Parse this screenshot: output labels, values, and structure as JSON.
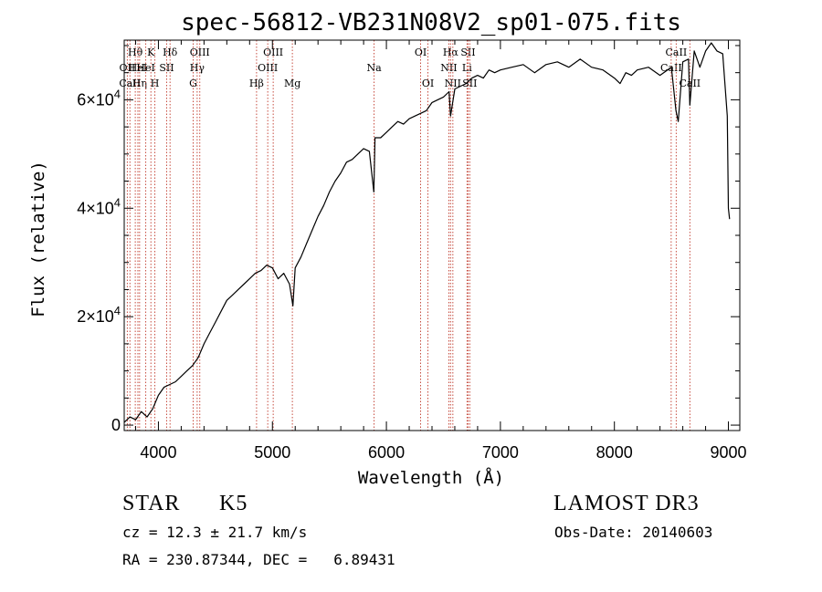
{
  "chart_data": {
    "type": "line",
    "title": "spec-56812-VB231N08V2_sp01-075.fits",
    "xlabel": "Wavelength (Å)",
    "ylabel": "Flux (relative)",
    "xlim": [
      3700,
      9100
    ],
    "ylim": [
      -1000,
      71000
    ],
    "x_ticks": [
      {
        "value": 4000,
        "label": "4000"
      },
      {
        "value": 5000,
        "label": "5000"
      },
      {
        "value": 6000,
        "label": "6000"
      },
      {
        "value": 7000,
        "label": "7000"
      },
      {
        "value": 8000,
        "label": "8000"
      },
      {
        "value": 9000,
        "label": "9000"
      }
    ],
    "y_ticks": [
      {
        "value": 0,
        "mant": "0",
        "exp": ""
      },
      {
        "value": 20000,
        "mant": "2×10",
        "exp": "4"
      },
      {
        "value": 40000,
        "mant": "4×10",
        "exp": "4"
      },
      {
        "value": 60000,
        "mant": "6×10",
        "exp": "4"
      }
    ],
    "series": [
      {
        "name": "flux",
        "x": [
          3700,
          3750,
          3800,
          3850,
          3900,
          3950,
          4000,
          4050,
          4100,
          4150,
          4200,
          4250,
          4300,
          4350,
          4400,
          4450,
          4500,
          4550,
          4600,
          4650,
          4700,
          4750,
          4800,
          4850,
          4900,
          4950,
          5000,
          5050,
          5100,
          5150,
          5180,
          5200,
          5250,
          5300,
          5350,
          5400,
          5450,
          5500,
          5550,
          5600,
          5650,
          5700,
          5750,
          5800,
          5850,
          5890,
          5900,
          5950,
          6000,
          6050,
          6100,
          6150,
          6200,
          6250,
          6300,
          6350,
          6400,
          6450,
          6500,
          6550,
          6563,
          6600,
          6650,
          6700,
          6750,
          6800,
          6850,
          6900,
          6950,
          7000,
          7100,
          7200,
          7300,
          7400,
          7500,
          7600,
          7700,
          7800,
          7900,
          8000,
          8050,
          8100,
          8150,
          8200,
          8300,
          8400,
          8500,
          8540,
          8560,
          8600,
          8650,
          8662,
          8700,
          8750,
          8800,
          8850,
          8900,
          8950,
          8990,
          9000,
          9010
        ],
        "y": [
          500,
          1500,
          1000,
          2500,
          1500,
          3000,
          5500,
          7000,
          7500,
          8000,
          9000,
          10000,
          11000,
          12500,
          15000,
          17000,
          19000,
          21000,
          23000,
          24000,
          25000,
          26000,
          27000,
          28000,
          28500,
          29500,
          29000,
          27000,
          28000,
          26000,
          22000,
          29000,
          31000,
          33500,
          36000,
          38500,
          40500,
          43000,
          45000,
          46500,
          48500,
          49000,
          50000,
          51000,
          50500,
          43000,
          53000,
          53000,
          54000,
          55000,
          56000,
          55500,
          56500,
          57000,
          57500,
          58000,
          59500,
          60000,
          60500,
          61500,
          57000,
          62000,
          62500,
          63000,
          64000,
          64500,
          64000,
          65500,
          65000,
          65500,
          66000,
          66500,
          65000,
          66500,
          67000,
          66000,
          67500,
          66000,
          65500,
          64000,
          63000,
          65000,
          64500,
          65500,
          66000,
          64500,
          66000,
          58000,
          56000,
          67000,
          67500,
          59000,
          69000,
          66000,
          69000,
          70500,
          69000,
          68500,
          57000,
          40000,
          38000
        ]
      }
    ],
    "lines": [
      {
        "x": 3727,
        "labels": [
          "OII"
        ],
        "row": 1
      },
      {
        "x": 3750,
        "labels": [
          "CaII"
        ],
        "row": 2
      },
      {
        "x": 3797,
        "labels": [
          "Hθ"
        ],
        "row": 0
      },
      {
        "x": 3820,
        "labels": [
          "HeI"
        ],
        "row": 1
      },
      {
        "x": 3835,
        "labels": [
          "Hη"
        ],
        "row": 2
      },
      {
        "x": 3889,
        "labels": [
          "HeI"
        ],
        "row": 1
      },
      {
        "x": 3934,
        "labels": [
          "K"
        ],
        "row": 0
      },
      {
        "x": 3969,
        "labels": [
          "H"
        ],
        "row": 2
      },
      {
        "x": 4072,
        "labels": [
          "SII"
        ],
        "row": 1
      },
      {
        "x": 4102,
        "labels": [
          "Hδ"
        ],
        "row": 0
      },
      {
        "x": 4305,
        "labels": [
          "G"
        ],
        "row": 2
      },
      {
        "x": 4340,
        "labels": [
          "Hγ"
        ],
        "row": 1
      },
      {
        "x": 4363,
        "labels": [
          "OIII"
        ],
        "row": 0
      },
      {
        "x": 4861,
        "labels": [
          "Hβ"
        ],
        "row": 2
      },
      {
        "x": 4959,
        "labels": [
          "OIII"
        ],
        "row": 1
      },
      {
        "x": 5007,
        "labels": [
          "OIII"
        ],
        "row": 0
      },
      {
        "x": 5175,
        "labels": [
          "Mg"
        ],
        "row": 2
      },
      {
        "x": 5892,
        "labels": [
          "Na"
        ],
        "row": 1
      },
      {
        "x": 6300,
        "labels": [
          "OI"
        ],
        "row": 0
      },
      {
        "x": 6364,
        "labels": [
          "OI"
        ],
        "row": 2
      },
      {
        "x": 6548,
        "labels": [
          "NII"
        ],
        "row": 1
      },
      {
        "x": 6563,
        "labels": [
          "Hα"
        ],
        "row": 0
      },
      {
        "x": 6583,
        "labels": [
          "NII"
        ],
        "row": 2
      },
      {
        "x": 6707,
        "labels": [
          "Li"
        ],
        "row": 1
      },
      {
        "x": 6716,
        "labels": [
          "SII"
        ],
        "row": 0
      },
      {
        "x": 6731,
        "labels": [
          "SII"
        ],
        "row": 2
      },
      {
        "x": 8498,
        "labels": [
          "CaII"
        ],
        "row": 1
      },
      {
        "x": 8542,
        "labels": [
          "CaII"
        ],
        "row": 0
      },
      {
        "x": 8662,
        "labels": [
          "CaII"
        ],
        "row": 2
      }
    ]
  },
  "info": {
    "class": "STAR",
    "subclass": "K5",
    "survey": "LAMOST DR3",
    "cz": "cz = 12.3 ± 21.7 km/s",
    "obs_date": "Obs-Date: 20140603",
    "radec": "RA = 230.87344, DEC =   6.89431"
  }
}
